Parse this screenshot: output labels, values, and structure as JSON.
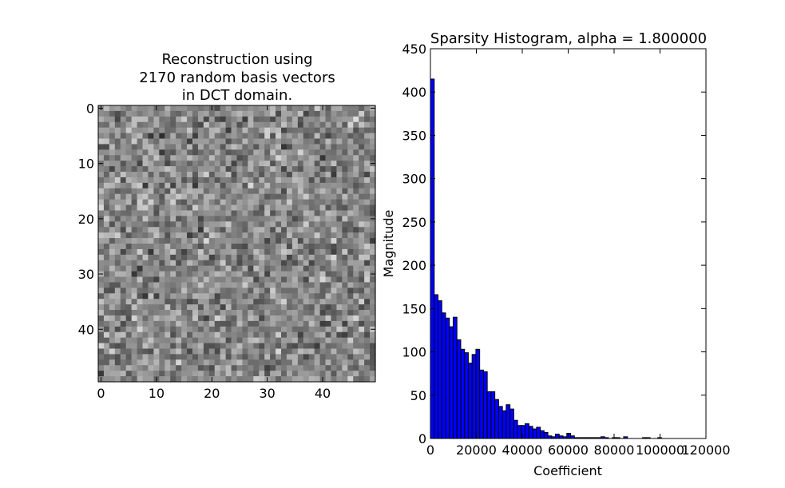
{
  "chart_data": [
    {
      "type": "heatmap",
      "title_lines": [
        "Reconstruction using",
        "2170 random basis vectors",
        "in DCT domain."
      ],
      "xlabel": "",
      "ylabel": "",
      "grid_size": [
        50,
        50
      ],
      "xlim": [
        -0.5,
        49.5
      ],
      "ylim": [
        49.5,
        -0.5
      ],
      "xticks": [
        0,
        10,
        20,
        30,
        40
      ],
      "yticks": [
        0,
        10,
        20,
        30,
        40
      ],
      "colormap": "gray",
      "grid": false
    },
    {
      "type": "bar",
      "title": "Sparsity Histogram, alpha = 1.800000",
      "xlabel": "Coefficient",
      "ylabel": "Magnitude",
      "xlim": [
        0,
        120000
      ],
      "ylim": [
        0,
        450
      ],
      "xticks": [
        0,
        20000,
        40000,
        60000,
        80000,
        100000,
        120000
      ],
      "yticks": [
        0,
        50,
        100,
        150,
        200,
        250,
        300,
        350,
        400,
        450
      ],
      "bin_width": 1650,
      "bin_starts": [
        0,
        1650,
        3300,
        4950,
        6600,
        8250,
        9900,
        11550,
        13200,
        14850,
        16500,
        18150,
        19800,
        21450,
        23100,
        24750,
        26400,
        28050,
        29700,
        31350,
        33000,
        34650,
        36300,
        37950,
        39600,
        41250,
        42900,
        44550,
        46200,
        47850,
        49500,
        51150,
        52800,
        54450,
        56100,
        57750,
        59400,
        61050,
        62700,
        64350,
        66000,
        67650,
        69300,
        70950,
        72600,
        74250,
        75900,
        77550,
        79200,
        80850,
        82500,
        84150,
        85800,
        87450,
        89100,
        90750,
        92400,
        94050,
        95700,
        97350,
        99000,
        100650
      ],
      "values": [
        415,
        166,
        159,
        145,
        139,
        129,
        140,
        114,
        103,
        99,
        87,
        97,
        103,
        79,
        77,
        54,
        54,
        45,
        37,
        32,
        39,
        34,
        21,
        15,
        15,
        17,
        14,
        11,
        13,
        9,
        7,
        3,
        2,
        5,
        3,
        2,
        6,
        3,
        1,
        1,
        1,
        1,
        1,
        1,
        1,
        2,
        1,
        0,
        1,
        1,
        0,
        2,
        0,
        0,
        0,
        0,
        1,
        1,
        0,
        0,
        1,
        0
      ],
      "bar_color": "#0000ff",
      "edge_color": "#000000",
      "grid": false
    }
  ]
}
